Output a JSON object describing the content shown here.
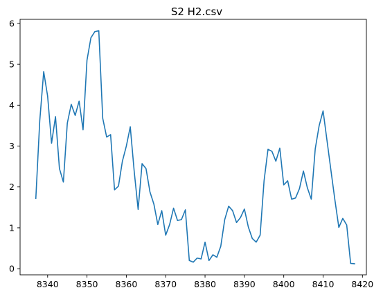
{
  "chart_data": {
    "type": "line",
    "title": "S2 H2.csv",
    "xlabel": "",
    "ylabel": "",
    "xlim": [
      8333.0,
      8421.0
    ],
    "ylim": [
      -0.15,
      6.1
    ],
    "xticks": [
      8340,
      8350,
      8360,
      8370,
      8380,
      8390,
      8400,
      8410,
      8420
    ],
    "yticks": [
      0,
      1,
      2,
      3,
      4,
      5,
      6
    ],
    "grid": false,
    "legend": "none",
    "line_color": "#1f77b4",
    "series": [
      {
        "x": [
          8337,
          8338,
          8339,
          8340,
          8341,
          8342,
          8343,
          8344,
          8345,
          8346,
          8347,
          8348,
          8349,
          8350,
          8351,
          8352,
          8353,
          8354,
          8355,
          8356,
          8357,
          8358,
          8359,
          8360,
          8361,
          8362,
          8363,
          8364,
          8365,
          8366,
          8367,
          8368,
          8369,
          8370,
          8371,
          8372,
          8373,
          8374,
          8375,
          8376,
          8377,
          8378,
          8379,
          8380,
          8381,
          8382,
          8383,
          8384,
          8385,
          8386,
          8387,
          8388,
          8389,
          8390,
          8391,
          8392,
          8393,
          8394,
          8395,
          8396,
          8397,
          8398,
          8399,
          8400,
          8401,
          8402,
          8403,
          8404,
          8405,
          8406,
          8407,
          8408,
          8409,
          8410,
          8411,
          8412,
          8413,
          8414,
          8415,
          8416,
          8417,
          8418
        ],
        "values": [
          1.72,
          3.62,
          4.82,
          4.22,
          3.07,
          3.72,
          2.45,
          2.12,
          3.56,
          4.02,
          3.75,
          4.1,
          3.4,
          5.1,
          5.65,
          5.8,
          5.82,
          3.68,
          3.22,
          3.28,
          1.93,
          2.02,
          2.63,
          3.0,
          3.47,
          2.38,
          1.45,
          2.57,
          2.45,
          1.88,
          1.58,
          1.08,
          1.42,
          0.82,
          1.08,
          1.48,
          1.18,
          1.2,
          1.44,
          0.2,
          0.16,
          0.26,
          0.24,
          0.65,
          0.2,
          0.34,
          0.28,
          0.55,
          1.2,
          1.53,
          1.42,
          1.13,
          1.25,
          1.46,
          1.02,
          0.74,
          0.65,
          0.82,
          2.15,
          2.92,
          2.87,
          2.63,
          2.95,
          2.05,
          2.15,
          1.7,
          1.73,
          1.96,
          2.39,
          1.98,
          1.7,
          2.93,
          3.5,
          3.86,
          3.13,
          2.4,
          1.68,
          1.01,
          1.23,
          1.07,
          0.13,
          0.12
        ]
      }
    ]
  }
}
